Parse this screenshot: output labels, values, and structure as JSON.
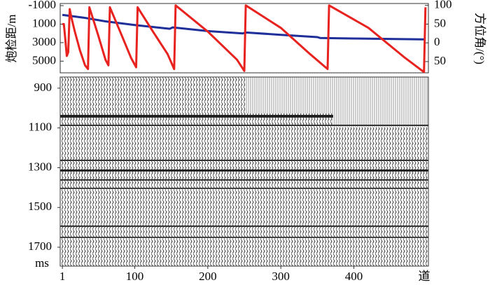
{
  "chart_data": [
    {
      "type": "line",
      "ylabel": "炮检距/m",
      "y2label": "方位角/(°)",
      "xlim": [
        -2,
        502
      ],
      "ylim": [
        -1230,
        6260
      ],
      "y_inverted": true,
      "yticks": [
        -1000,
        1000,
        3000,
        5000
      ],
      "y2lim": [
        -80,
        105
      ],
      "y2ticks": [
        100,
        50,
        0,
        {
          "value": -50,
          "label": "50"
        }
      ],
      "series": [
        {
          "color": "#1f2f9a",
          "x": [
            1,
            30,
            60,
            100,
            148,
            152,
            200,
            248,
            252,
            300,
            350,
            354,
            400,
            450,
            496
          ],
          "values": [
            0,
            300,
            700,
            1100,
            1500,
            1350,
            1750,
            2000,
            1900,
            2150,
            2400,
            2500,
            2550,
            2600,
            2650
          ]
        },
        {
          "color": "#e8231f",
          "axis": "y2",
          "x": [
            1,
            3,
            5,
            7,
            9,
            11,
            13,
            18,
            25,
            32,
            36,
            38,
            50,
            60,
            64,
            66,
            80,
            95,
            102,
            104,
            125,
            145,
            154,
            156,
            200,
            240,
            250,
            252,
            300,
            340,
            364,
            366,
            420,
            470,
            496,
            498
          ],
          "values": [
            50,
            50,
            10,
            -35,
            -25,
            90,
            70,
            30,
            -20,
            -60,
            -70,
            95,
            20,
            -45,
            -60,
            95,
            30,
            -40,
            -65,
            95,
            30,
            -30,
            -70,
            100,
            30,
            -45,
            -75,
            100,
            40,
            -30,
            -70,
            100,
            40,
            -40,
            -78,
            95
          ]
        }
      ]
    },
    {
      "type": "seismic",
      "xlabel": "道",
      "ylabel": "ms",
      "xlim": [
        -2,
        502
      ],
      "xticks": [
        1,
        100,
        200,
        300,
        400
      ],
      "ylim": [
        844,
        1795
      ],
      "yticks": [
        900,
        1100,
        1300,
        1500,
        1700
      ]
    }
  ]
}
